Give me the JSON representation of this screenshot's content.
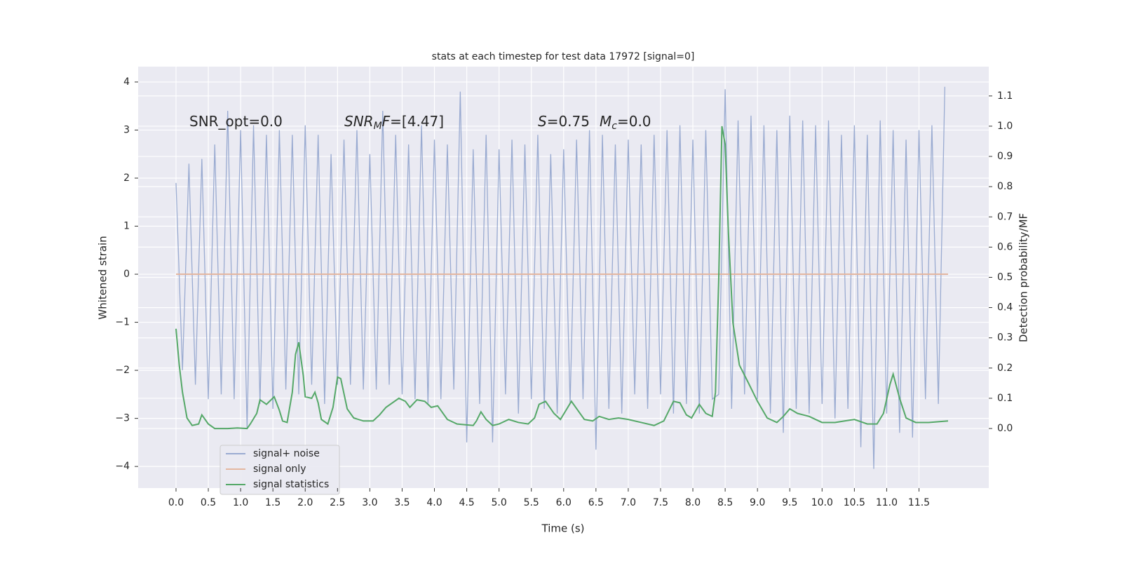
{
  "chart_data": {
    "type": "line",
    "title": "stats at each timestep for test data 17972 [signal=0]",
    "xlabel": "Time (s)",
    "ylabel": "Whitened strain",
    "y2label": "Detection probability/MF",
    "annotations": [
      [
        "SNR_opt=0.0"
      ],
      [
        "SNR",
        "M",
        "F",
        "=[4.47]"
      ],
      [
        "S",
        "=0.75",
        "M",
        "c",
        "=0.0"
      ]
    ],
    "grid": true,
    "legend": "lower left",
    "xlim": [
      -0.586,
      12.58
    ],
    "xticks": [
      {
        "value": 0,
        "label": "0.0"
      },
      0.5,
      {
        "value": 1,
        "label": "1.0"
      },
      1.5,
      {
        "value": 2,
        "label": "2.0"
      },
      2.5,
      {
        "value": 3,
        "label": "3.0"
      },
      3.5,
      {
        "value": 4,
        "label": "4.0"
      },
      4.5,
      {
        "value": 5,
        "label": "5.0"
      },
      5.5,
      {
        "value": 6,
        "label": "6.0"
      },
      6.5,
      {
        "value": 7,
        "label": "7.0"
      },
      7.5,
      {
        "value": 8,
        "label": "8.0"
      },
      8.5,
      {
        "value": 9,
        "label": "9.0"
      },
      9.5,
      {
        "value": 10,
        "label": "10.0"
      },
      10.5,
      {
        "value": 11,
        "label": "11.0"
      },
      11.5
    ],
    "ylim": [
      -4.45,
      4.32
    ],
    "yticks": [
      {
        "value": -4,
        "label": "−4"
      },
      {
        "value": -3,
        "label": "−3"
      },
      {
        "value": -2,
        "label": "−2"
      },
      {
        "value": -1,
        "label": "−1"
      },
      0,
      1,
      2,
      3,
      4
    ],
    "y2lim": [
      -0.197,
      1.197
    ],
    "y2ticks": [
      {
        "value": 0,
        "label": "0.0"
      },
      0.1,
      0.2,
      0.3,
      0.4,
      0.5,
      0.6,
      0.7,
      0.8,
      0.9,
      {
        "value": 1,
        "label": "1.0"
      },
      1.1
    ],
    "series": [
      {
        "name": "signal+ noise",
        "color": "#9aabd1",
        "x": [
          0.0,
          0.1,
          0.2,
          0.3,
          0.4,
          0.5,
          0.6,
          0.7,
          0.8,
          0.9,
          1.0,
          1.1,
          1.2,
          1.3,
          1.4,
          1.5,
          1.6,
          1.7,
          1.8,
          1.9,
          2.0,
          2.1,
          2.2,
          2.3,
          2.4,
          2.5,
          2.6,
          2.7,
          2.8,
          2.9,
          3.0,
          3.1,
          3.2,
          3.3,
          3.4,
          3.5,
          3.6,
          3.7,
          3.8,
          3.9,
          4.0,
          4.1,
          4.2,
          4.3,
          4.4,
          4.5,
          4.6,
          4.7,
          4.8,
          4.9,
          5.0,
          5.1,
          5.2,
          5.3,
          5.4,
          5.5,
          5.6,
          5.7,
          5.8,
          5.9,
          6.0,
          6.1,
          6.2,
          6.3,
          6.4,
          6.5,
          6.6,
          6.7,
          6.8,
          6.9,
          7.0,
          7.1,
          7.2,
          7.3,
          7.4,
          7.5,
          7.6,
          7.7,
          7.8,
          7.9,
          8.0,
          8.1,
          8.2,
          8.3,
          8.4,
          8.5,
          8.6,
          8.7,
          8.8,
          8.9,
          9.0,
          9.1,
          9.2,
          9.3,
          9.4,
          9.5,
          9.6,
          9.7,
          9.8,
          9.9,
          10.0,
          10.1,
          10.2,
          10.3,
          10.4,
          10.5,
          10.6,
          10.7,
          10.8,
          10.9,
          11.0,
          11.1,
          11.2,
          11.3,
          11.4,
          11.5,
          11.6,
          11.7,
          11.8,
          11.9
        ],
        "values": [
          1.9,
          -2.0,
          2.3,
          -2.3,
          2.4,
          -2.6,
          2.7,
          -2.5,
          3.4,
          -2.6,
          3.0,
          -3.2,
          3.1,
          -2.7,
          2.9,
          -2.8,
          3.0,
          -2.4,
          2.9,
          -2.5,
          3.1,
          -2.3,
          2.9,
          -2.7,
          2.5,
          -2.3,
          2.8,
          -2.3,
          3.0,
          -2.4,
          2.5,
          -2.4,
          3.4,
          -2.3,
          2.9,
          -2.5,
          2.7,
          -2.6,
          3.1,
          -2.7,
          2.8,
          -2.6,
          2.7,
          -2.4,
          3.8,
          -3.5,
          2.6,
          -2.7,
          2.9,
          -3.5,
          2.6,
          -2.5,
          2.8,
          -2.9,
          2.7,
          -2.6,
          2.9,
          -2.8,
          2.5,
          -2.9,
          2.6,
          -2.7,
          2.8,
          -2.6,
          3.0,
          -3.65,
          2.9,
          -2.8,
          2.7,
          -2.9,
          2.8,
          -2.5,
          2.7,
          -2.8,
          2.9,
          -2.5,
          3.0,
          -2.9,
          3.1,
          -2.7,
          2.8,
          -2.9,
          3.0,
          -2.6,
          -2.5,
          3.85,
          -2.8,
          3.2,
          -2.5,
          3.3,
          -2.6,
          3.1,
          -2.9,
          3.0,
          -3.3,
          3.3,
          -2.8,
          3.2,
          -2.9,
          3.1,
          -2.7,
          3.2,
          -3.0,
          2.9,
          -2.8,
          3.1,
          -3.6,
          2.9,
          -4.05,
          3.2,
          -2.9,
          3.0,
          -3.3,
          2.8,
          -3.4,
          3.0,
          -2.6,
          3.1,
          -2.7,
          3.9
        ]
      },
      {
        "name": "signal only",
        "color": "#e4b7a0",
        "x": [
          0,
          11.95
        ],
        "values": [
          0,
          0
        ]
      },
      {
        "name": "signal statistics",
        "color": "#55a868",
        "axis": "y2",
        "x": [
          0.0,
          0.05,
          0.1,
          0.17,
          0.25,
          0.35,
          0.4,
          0.5,
          0.6,
          0.8,
          0.95,
          1.1,
          1.15,
          1.25,
          1.3,
          1.4,
          1.52,
          1.6,
          1.65,
          1.72,
          1.8,
          1.85,
          1.9,
          1.97,
          2.0,
          2.1,
          2.15,
          2.2,
          2.25,
          2.35,
          2.43,
          2.5,
          2.55,
          2.65,
          2.75,
          2.9,
          3.05,
          3.15,
          3.25,
          3.45,
          3.55,
          3.62,
          3.73,
          3.85,
          3.95,
          4.05,
          4.2,
          4.35,
          4.6,
          4.65,
          4.72,
          4.8,
          4.9,
          5.0,
          5.15,
          5.3,
          5.45,
          5.55,
          5.62,
          5.72,
          5.85,
          5.95,
          6.05,
          6.12,
          6.22,
          6.32,
          6.45,
          6.55,
          6.7,
          6.85,
          7.0,
          7.2,
          7.4,
          7.55,
          7.7,
          7.8,
          7.9,
          7.98,
          8.1,
          8.2,
          8.3,
          8.35,
          8.4,
          8.45,
          8.5,
          8.55,
          8.62,
          8.72,
          8.85,
          9.0,
          9.15,
          9.3,
          9.4,
          9.5,
          9.62,
          9.8,
          10.0,
          10.2,
          10.35,
          10.5,
          10.7,
          10.85,
          10.95,
          11.05,
          11.1,
          11.2,
          11.3,
          11.45,
          11.65,
          11.95
        ],
        "values": [
          0.33,
          0.21,
          0.12,
          0.035,
          0.01,
          0.015,
          0.045,
          0.015,
          0.0,
          0.0,
          0.002,
          0.0,
          0.015,
          0.05,
          0.095,
          0.08,
          0.105,
          0.06,
          0.025,
          0.02,
          0.12,
          0.245,
          0.285,
          0.175,
          0.105,
          0.1,
          0.12,
          0.085,
          0.03,
          0.015,
          0.07,
          0.17,
          0.165,
          0.065,
          0.035,
          0.025,
          0.025,
          0.045,
          0.07,
          0.1,
          0.09,
          0.07,
          0.095,
          0.09,
          0.07,
          0.075,
          0.03,
          0.015,
          0.01,
          0.025,
          0.055,
          0.03,
          0.01,
          0.015,
          0.03,
          0.02,
          0.015,
          0.035,
          0.08,
          0.09,
          0.05,
          0.03,
          0.065,
          0.09,
          0.06,
          0.03,
          0.025,
          0.04,
          0.03,
          0.035,
          0.03,
          0.02,
          0.01,
          0.025,
          0.09,
          0.085,
          0.045,
          0.035,
          0.08,
          0.05,
          0.04,
          0.12,
          0.49,
          1.0,
          0.94,
          0.65,
          0.35,
          0.21,
          0.155,
          0.09,
          0.035,
          0.02,
          0.04,
          0.065,
          0.05,
          0.04,
          0.02,
          0.02,
          0.025,
          0.03,
          0.015,
          0.015,
          0.05,
          0.145,
          0.18,
          0.1,
          0.035,
          0.02,
          0.02,
          0.025
        ]
      }
    ]
  }
}
